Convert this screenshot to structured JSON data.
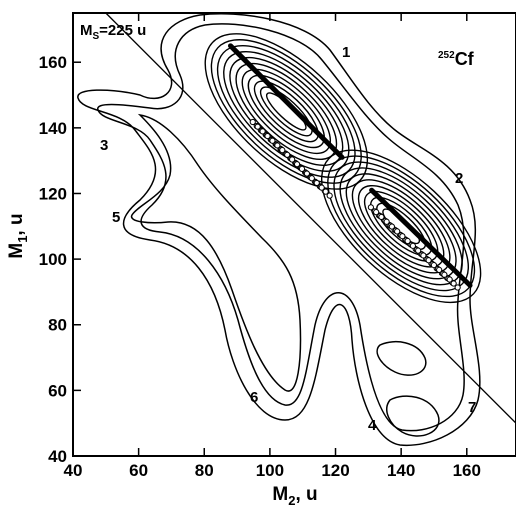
{
  "chart_data": {
    "type": "contour",
    "xlabel_main": "M",
    "xlabel_sub": "2",
    "xlabel_unit": ", u",
    "ylabel_main": "M",
    "ylabel_sub": "1",
    "ylabel_unit": ", u",
    "xlim": [
      40,
      175
    ],
    "ylim": [
      40,
      175
    ],
    "xticks": [
      "40",
      "60",
      "80",
      "100",
      "120",
      "140",
      "160"
    ],
    "yticks": [
      "40",
      "60",
      "80",
      "100",
      "120",
      "140",
      "160"
    ],
    "isotope_sup": "252",
    "isotope": "Cf",
    "ms_line": {
      "label_main": "M",
      "label_sub": "S",
      "label_rest": "=225 u",
      "sum": 225
    },
    "region_labels": [
      "1",
      "2",
      "3",
      "4",
      "5",
      "6",
      "7"
    ],
    "peaks": [
      {
        "name": "1",
        "m2": 105,
        "m1": 145
      },
      {
        "name": "2",
        "m2": 140,
        "m1": 110
      }
    ],
    "ridge_segments": [
      {
        "m2": [
          88,
          122
        ],
        "m1": [
          165,
          131
        ]
      },
      {
        "m2": [
          131,
          161
        ],
        "m1": [
          121,
          92
        ]
      }
    ]
  }
}
